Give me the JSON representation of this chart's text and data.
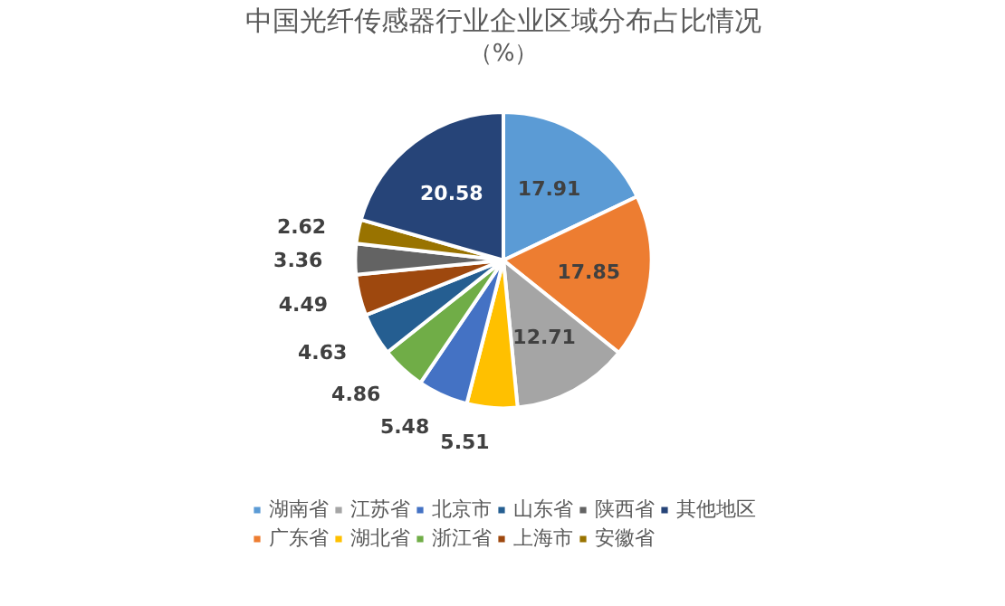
{
  "chart_data": {
    "type": "pie",
    "title": "中国光纤传感器行业企业区域分布占比情况",
    "subtitle": "（%）",
    "categories": [
      "湖南省",
      "广东省",
      "江苏省",
      "湖北省",
      "北京市",
      "浙江省",
      "山东省",
      "上海市",
      "陕西省",
      "安徽省",
      "其他地区"
    ],
    "values": [
      17.91,
      17.85,
      12.71,
      5.51,
      5.48,
      4.86,
      4.63,
      4.49,
      3.36,
      2.62,
      20.58
    ],
    "colors": [
      "#5b9bd5",
      "#ed7d31",
      "#a5a5a5",
      "#ffc000",
      "#4472c4",
      "#70ad47",
      "#255e91",
      "#9e480e",
      "#636363",
      "#997300",
      "#264478"
    ],
    "data_labels": true,
    "legend": "bottom"
  }
}
